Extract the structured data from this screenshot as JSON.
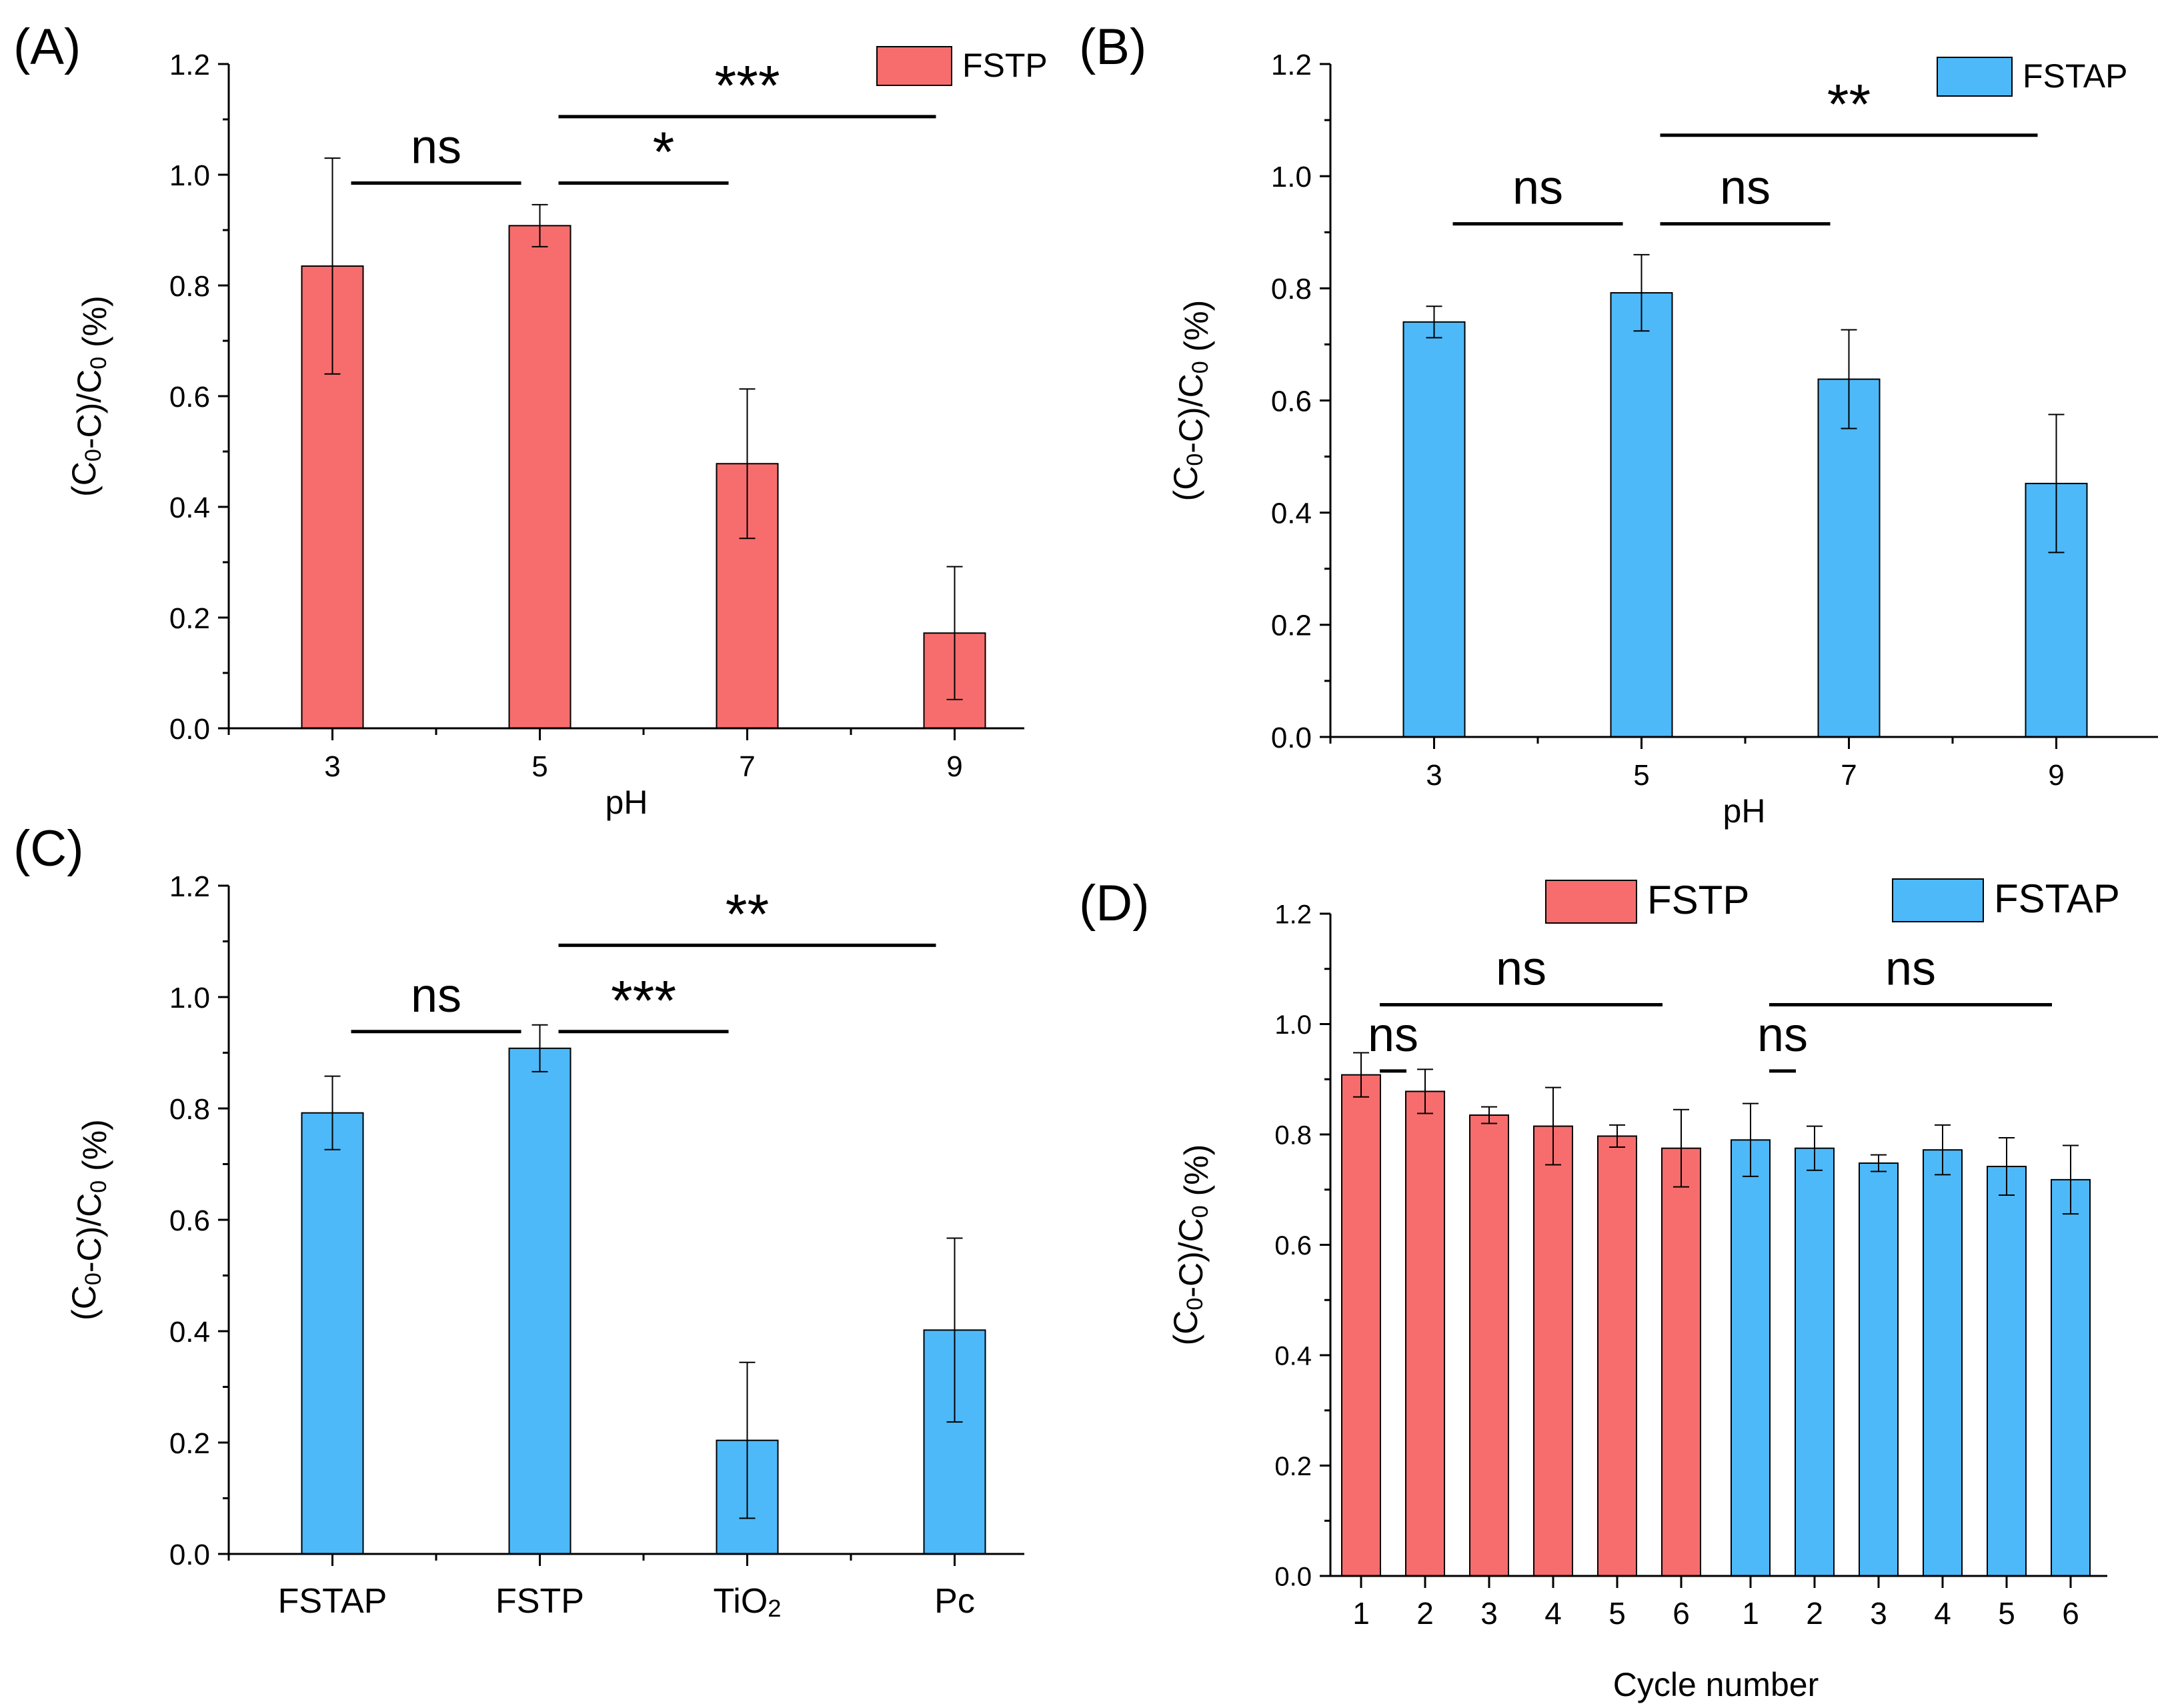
{
  "colors": {
    "red": "#f76d6d",
    "blue": "#4db9f9",
    "axis": "#000000"
  },
  "chart_data": [
    {
      "panel": "(A)",
      "type": "bar",
      "categories": [
        "3",
        "5",
        "7",
        "9"
      ],
      "values": [
        0.835,
        0.908,
        0.478,
        0.172
      ],
      "errors": [
        0.195,
        0.038,
        0.135,
        0.12
      ],
      "series_color": "red",
      "xlabel": "pH",
      "ylabel": "(C0-C)/C0 (%)",
      "ylim": [
        0,
        1.2
      ],
      "yticks": [
        "0.0",
        "0.2",
        "0.4",
        "0.6",
        "0.8",
        "1.0",
        "1.2"
      ],
      "legend": [
        "FSTP"
      ],
      "legend_position": "top-right",
      "significance": [
        {
          "label": "ns",
          "from": 0,
          "to": 1,
          "y": 0.985
        },
        {
          "label": "*",
          "from": 1,
          "to": 2,
          "y": 0.985
        },
        {
          "label": "***",
          "from": 1,
          "to": 3,
          "y": 1.105
        }
      ]
    },
    {
      "panel": "(B)",
      "type": "bar",
      "categories": [
        "3",
        "5",
        "7",
        "9"
      ],
      "values": [
        0.74,
        0.792,
        0.638,
        0.452
      ],
      "errors": [
        0.028,
        0.068,
        0.088,
        0.123
      ],
      "series_color": "blue",
      "xlabel": "pH",
      "ylabel": "(C0-C)/C0 (%)",
      "ylim": [
        0,
        1.2
      ],
      "yticks": [
        "0.0",
        "0.2",
        "0.4",
        "0.6",
        "0.8",
        "1.0",
        "1.2"
      ],
      "legend": [
        "FSTAP"
      ],
      "legend_position": "top-right",
      "significance": [
        {
          "label": "ns",
          "from": 0,
          "to": 1,
          "y": 0.915
        },
        {
          "label": "ns",
          "from": 1,
          "to": 2,
          "y": 0.915
        },
        {
          "label": "**",
          "from": 1,
          "to": 3,
          "y": 1.073
        }
      ]
    },
    {
      "panel": "(C)",
      "type": "bar",
      "categories": [
        "FSTAP",
        "FSTP",
        "TiO2",
        "Pc"
      ],
      "values": [
        0.792,
        0.908,
        0.204,
        0.402
      ],
      "errors": [
        0.066,
        0.042,
        0.14,
        0.165
      ],
      "series_color": "blue",
      "xlabel": "",
      "ylabel": "(C0-C)/C0 (%)",
      "ylim": [
        0,
        1.2
      ],
      "yticks": [
        "0.0",
        "0.2",
        "0.4",
        "0.6",
        "0.8",
        "1.0",
        "1.2"
      ],
      "legend": [],
      "significance": [
        {
          "label": "ns",
          "from": 0,
          "to": 1,
          "y": 0.938
        },
        {
          "label": "***",
          "from": 1,
          "to": 2,
          "y": 0.938
        },
        {
          "label": "**",
          "from": 1,
          "to": 3,
          "y": 1.093
        }
      ]
    },
    {
      "panel": "(D)",
      "type": "bar",
      "categories": [
        "1",
        "2",
        "3",
        "4",
        "5",
        "6",
        "1",
        "2",
        "3",
        "4",
        "5",
        "6"
      ],
      "values": [
        0.908,
        0.878,
        0.835,
        0.815,
        0.797,
        0.775,
        0.79,
        0.775,
        0.748,
        0.772,
        0.742,
        0.718
      ],
      "errors": [
        0.04,
        0.04,
        0.015,
        0.07,
        0.02,
        0.07,
        0.066,
        0.04,
        0.015,
        0.045,
        0.052,
        0.062
      ],
      "bar_series": [
        "red",
        "red",
        "red",
        "red",
        "red",
        "red",
        "blue",
        "blue",
        "blue",
        "blue",
        "blue",
        "blue"
      ],
      "xlabel": "Cycle number",
      "ylabel": "(C0-C)/C0 (%)",
      "ylim": [
        0,
        1.2
      ],
      "yticks": [
        "0.0",
        "0.2",
        "0.4",
        "0.6",
        "0.8",
        "1.0",
        "1.2"
      ],
      "legend": [
        "FSTP",
        "FSTAP"
      ],
      "legend_position": "top",
      "significance": [
        {
          "label": "ns",
          "from": 0,
          "to": 5,
          "y": 1.035
        },
        {
          "label": "ns",
          "from": 0,
          "to": 1,
          "y": 0.915
        },
        {
          "label": "ns",
          "from": 6,
          "to": 11,
          "y": 1.035
        },
        {
          "label": "ns",
          "from": 6,
          "to": 7,
          "y": 0.915
        }
      ]
    }
  ]
}
